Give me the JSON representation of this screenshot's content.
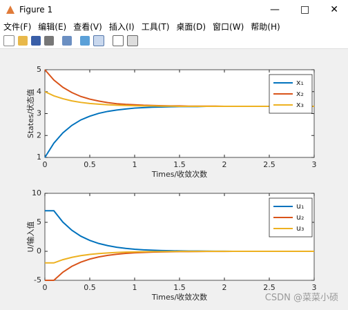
{
  "window": {
    "title": "Figure 1",
    "menu": [
      "文件(F)",
      "编辑(E)",
      "查看(V)",
      "插入(I)",
      "工具(T)",
      "桌面(D)",
      "窗口(W)",
      "帮助(H)"
    ]
  },
  "watermark": "CSDN @菜菜小硕",
  "chart_data": [
    {
      "type": "line",
      "xlabel": "Times/收敛次数",
      "ylabel": "States/状态值",
      "x": [
        0,
        0.1,
        0.2,
        0.3,
        0.4,
        0.5,
        0.6,
        0.7,
        0.8,
        0.9,
        1,
        1.1,
        1.2,
        1.3,
        1.4,
        1.5,
        1.6,
        1.7,
        1.8,
        1.9,
        2,
        2.1,
        2.2,
        2.3,
        2.4,
        2.5,
        2.6,
        2.7,
        2.8,
        2.9,
        3
      ],
      "xlim": [
        0,
        3
      ],
      "xticks": [
        0,
        0.5,
        1,
        1.5,
        2,
        2.5,
        3
      ],
      "ylim": [
        1,
        5
      ],
      "yticks": [
        1,
        2,
        3,
        4,
        5
      ],
      "legend": "upper right",
      "series": [
        {
          "name": "x₁",
          "color": "#0072bd",
          "values": [
            1.0,
            1.65,
            2.12,
            2.46,
            2.71,
            2.88,
            3.01,
            3.1,
            3.16,
            3.21,
            3.25,
            3.27,
            3.29,
            3.3,
            3.31,
            3.32,
            3.32,
            3.32,
            3.33,
            3.33,
            3.33,
            3.33,
            3.33,
            3.33,
            3.33,
            3.33,
            3.33,
            3.33,
            3.33,
            3.33,
            3.33
          ]
        },
        {
          "name": "x₂",
          "color": "#d95319",
          "values": [
            5.0,
            4.53,
            4.2,
            3.96,
            3.78,
            3.66,
            3.57,
            3.5,
            3.45,
            3.42,
            3.4,
            3.38,
            3.37,
            3.36,
            3.35,
            3.35,
            3.34,
            3.34,
            3.34,
            3.34,
            3.33,
            3.33,
            3.33,
            3.33,
            3.33,
            3.33,
            3.33,
            3.33,
            3.33,
            3.33,
            3.33
          ]
        },
        {
          "name": "x₃",
          "color": "#edb120",
          "values": [
            4.0,
            3.81,
            3.68,
            3.58,
            3.51,
            3.46,
            3.43,
            3.4,
            3.38,
            3.37,
            3.36,
            3.35,
            3.35,
            3.34,
            3.34,
            3.33,
            3.33,
            3.33,
            3.33,
            3.33,
            3.33,
            3.33,
            3.33,
            3.33,
            3.33,
            3.33,
            3.33,
            3.33,
            3.33,
            3.33,
            3.33
          ]
        }
      ]
    },
    {
      "type": "line",
      "xlabel": "Times/收敛次数",
      "ylabel": "U/输入值",
      "x": [
        0,
        0.1,
        0.2,
        0.3,
        0.4,
        0.5,
        0.6,
        0.7,
        0.8,
        0.9,
        1,
        1.1,
        1.2,
        1.3,
        1.4,
        1.5,
        1.6,
        1.7,
        1.8,
        1.9,
        2,
        2.1,
        2.2,
        2.3,
        2.4,
        2.5,
        2.6,
        2.7,
        2.8,
        2.9,
        3
      ],
      "xlim": [
        0,
        3
      ],
      "xticks": [
        0,
        0.5,
        1,
        1.5,
        2,
        2.5,
        3
      ],
      "ylim": [
        -5,
        10
      ],
      "yticks": [
        -5,
        0,
        5,
        10
      ],
      "legend": "upper right",
      "series": [
        {
          "name": "u₁",
          "color": "#0072bd",
          "values": [
            7,
            7,
            5.04,
            3.63,
            2.61,
            1.88,
            1.35,
            0.98,
            0.7,
            0.51,
            0.36,
            0.26,
            0.19,
            0.14,
            0.1,
            0.07,
            0.05,
            0.04,
            0.03,
            0.02,
            0.01,
            0,
            0,
            0,
            0,
            0,
            0,
            0,
            0,
            0,
            0
          ]
        },
        {
          "name": "u₂",
          "color": "#d95319",
          "values": [
            -5,
            -5,
            -3.6,
            -2.59,
            -1.87,
            -1.34,
            -0.97,
            -0.7,
            -0.5,
            -0.36,
            -0.26,
            -0.19,
            -0.13,
            -0.1,
            -0.07,
            -0.05,
            -0.04,
            -0.03,
            -0.02,
            -0.01,
            -0.01,
            0,
            0,
            0,
            0,
            0,
            0,
            0,
            0,
            0,
            0
          ]
        },
        {
          "name": "u₃",
          "color": "#edb120",
          "values": [
            -2,
            -2,
            -1.44,
            -1.04,
            -0.75,
            -0.54,
            -0.39,
            -0.28,
            -0.2,
            -0.14,
            -0.1,
            -0.07,
            -0.05,
            -0.04,
            -0.03,
            -0.02,
            -0.01,
            -0.01,
            0,
            0,
            0,
            0,
            0,
            0,
            0,
            0,
            0,
            0,
            0,
            0,
            0
          ]
        }
      ]
    }
  ]
}
